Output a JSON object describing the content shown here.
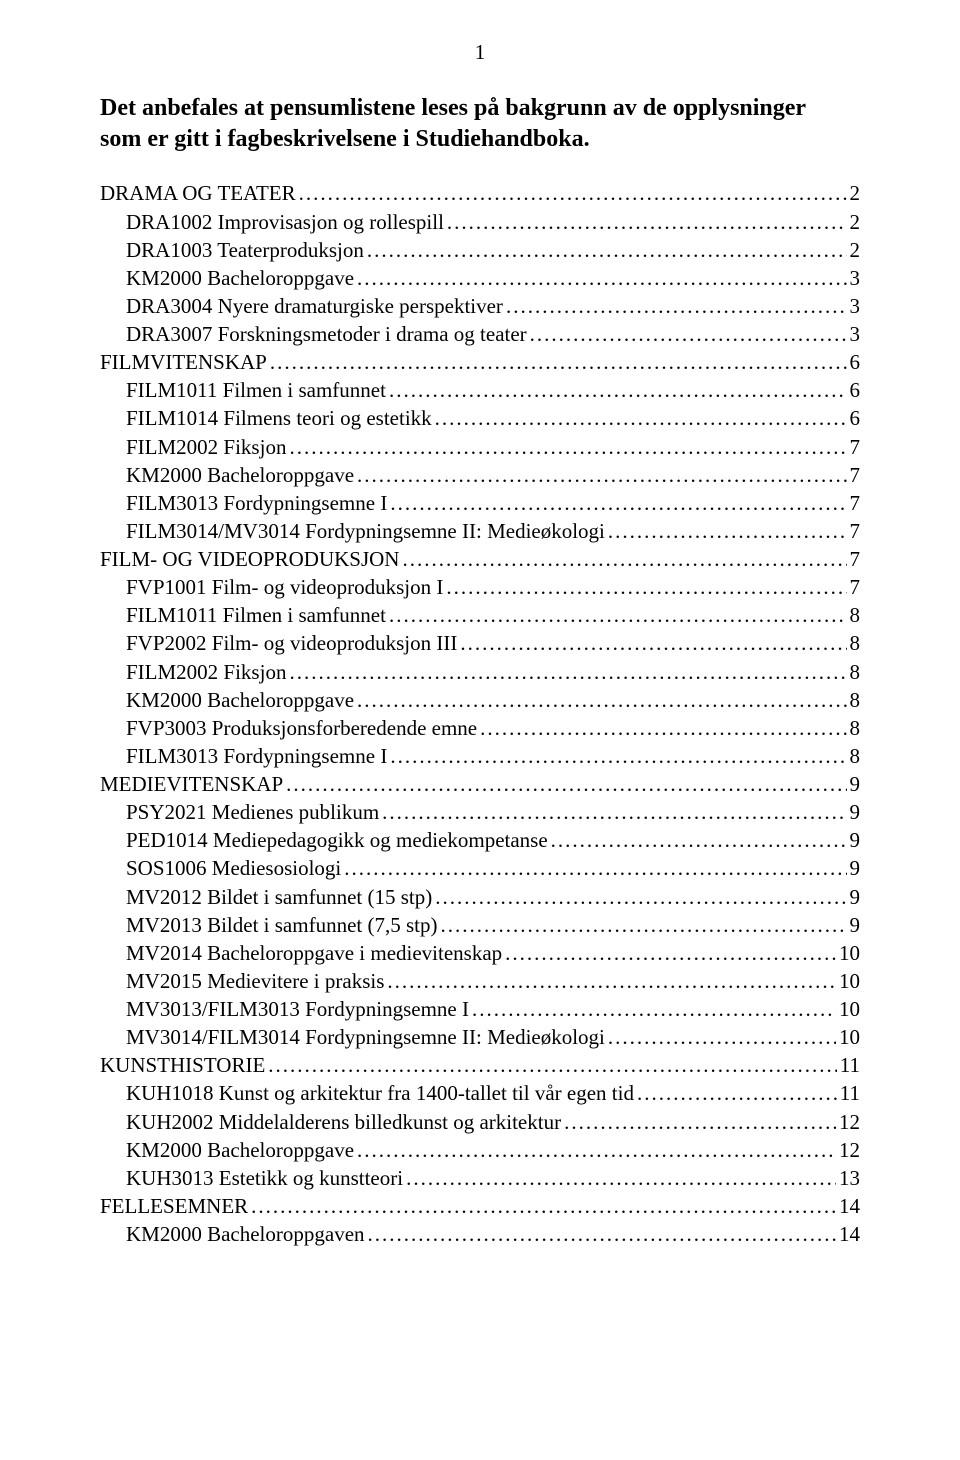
{
  "page_number": "1",
  "heading_line1": "Det anbefales at pensumlistene leses på bakgrunn av de opplysninger",
  "heading_line2": "som er gitt i fagbeskrivelsene i Studiehandboka.",
  "toc": [
    {
      "label": "DRAMA OG TEATER",
      "page": "2",
      "level": 0
    },
    {
      "label": "DRA1002 Improvisasjon og rollespill",
      "page": "2",
      "level": 1
    },
    {
      "label": "DRA1003 Teaterproduksjon",
      "page": "2",
      "level": 1
    },
    {
      "label": "KM2000 Bacheloroppgave",
      "page": "3",
      "level": 1
    },
    {
      "label": "DRA3004 Nyere dramaturgiske perspektiver",
      "page": "3",
      "level": 1
    },
    {
      "label": "DRA3007 Forskningsmetoder i drama og teater",
      "page": "3",
      "level": 1
    },
    {
      "label": "FILMVITENSKAP",
      "page": "6",
      "level": 0
    },
    {
      "label": "FILM1011 Filmen i samfunnet",
      "page": "6",
      "level": 1
    },
    {
      "label": "FILM1014 Filmens teori og estetikk",
      "page": "6",
      "level": 1
    },
    {
      "label": "FILM2002 Fiksjon",
      "page": "7",
      "level": 1
    },
    {
      "label": "KM2000 Bacheloroppgave",
      "page": "7",
      "level": 1
    },
    {
      "label": "FILM3013 Fordypningsemne I",
      "page": "7",
      "level": 1
    },
    {
      "label": "FILM3014/MV3014 Fordypningsemne II: Medieøkologi",
      "page": "7",
      "level": 1
    },
    {
      "label": "FILM- OG VIDEOPRODUKSJON",
      "page": "7",
      "level": 0
    },
    {
      "label": "FVP1001 Film- og videoproduksjon I",
      "page": "7",
      "level": 1
    },
    {
      "label": "FILM1011 Filmen i samfunnet",
      "page": "8",
      "level": 1
    },
    {
      "label": "FVP2002 Film- og videoproduksjon III",
      "page": "8",
      "level": 1
    },
    {
      "label": "FILM2002 Fiksjon",
      "page": "8",
      "level": 1
    },
    {
      "label": "KM2000 Bacheloroppgave",
      "page": "8",
      "level": 1
    },
    {
      "label": "FVP3003 Produksjonsforberedende emne",
      "page": "8",
      "level": 1
    },
    {
      "label": "FILM3013 Fordypningsemne I",
      "page": "8",
      "level": 1
    },
    {
      "label": "MEDIEVITENSKAP",
      "page": "9",
      "level": 0
    },
    {
      "label": "PSY2021 Medienes publikum",
      "page": "9",
      "level": 1
    },
    {
      "label": "PED1014 Mediepedagogikk og mediekompetanse",
      "page": "9",
      "level": 1
    },
    {
      "label": "SOS1006 Mediesosiologi",
      "page": "9",
      "level": 1
    },
    {
      "label": "MV2012 Bildet i samfunnet (15 stp)",
      "page": "9",
      "level": 1
    },
    {
      "label": "MV2013 Bildet i samfunnet (7,5 stp)",
      "page": "9",
      "level": 1
    },
    {
      "label": "MV2014 Bacheloroppgave i medievitenskap",
      "page": "10",
      "level": 1
    },
    {
      "label": "MV2015 Medievitere i praksis",
      "page": "10",
      "level": 1
    },
    {
      "label": "MV3013/FILM3013 Fordypningsemne I",
      "page": "10",
      "level": 1
    },
    {
      "label": "MV3014/FILM3014 Fordypningsemne II: Medieøkologi",
      "page": "10",
      "level": 1
    },
    {
      "label": "KUNSTHISTORIE",
      "page": "11",
      "level": 0
    },
    {
      "label": "KUH1018 Kunst og arkitektur fra 1400-tallet til vår egen tid",
      "page": "11",
      "level": 1
    },
    {
      "label": "KUH2002 Middelalderens billedkunst og arkitektur",
      "page": "12",
      "level": 1
    },
    {
      "label": "KM2000 Bacheloroppgave",
      "page": "12",
      "level": 1
    },
    {
      "label": "KUH3013 Estetikk og kunstteori",
      "page": "13",
      "level": 1
    },
    {
      "label": "FELLESEMNER",
      "page": "14",
      "level": 0
    },
    {
      "label": "KM2000 Bacheloroppgaven",
      "page": "14",
      "level": 1
    }
  ]
}
